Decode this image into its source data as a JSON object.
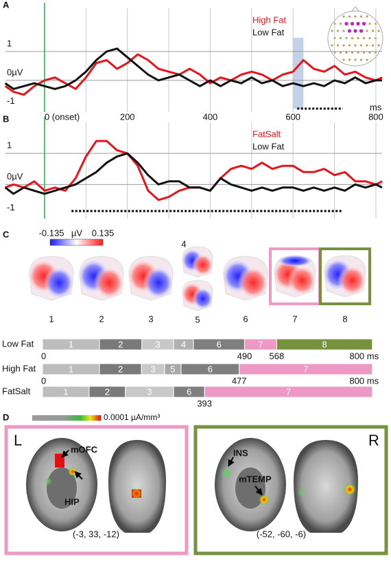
{
  "chart_data": [
    {
      "type": "line",
      "panel": "A",
      "x_label": "ms",
      "x": [
        -95,
        -75,
        -50,
        -25,
        0,
        25,
        50,
        75,
        100,
        125,
        150,
        175,
        200,
        225,
        250,
        275,
        300,
        325,
        350,
        375,
        400,
        425,
        450,
        475,
        500,
        525,
        550,
        575,
        600,
        625,
        650,
        675,
        700,
        725,
        750,
        775,
        800,
        815
      ],
      "series": [
        {
          "name": "High Fat",
          "color": "#e8141b",
          "values": [
            -0.2,
            -0.4,
            -0.5,
            -0.2,
            0,
            0.1,
            -0.1,
            -0.3,
            0.1,
            0.6,
            0.7,
            0.4,
            0.6,
            0.9,
            0.7,
            0.4,
            0.3,
            0.2,
            0.4,
            0.2,
            -0.1,
            0.1,
            0,
            0.2,
            0.3,
            0.2,
            0,
            0.2,
            0.3,
            0.7,
            0.4,
            0.3,
            0.5,
            0.2,
            0.3,
            0.1,
            0,
            0.1
          ]
        },
        {
          "name": "Low Fat",
          "color": "#111111",
          "values": [
            -0.1,
            -0.3,
            -0.2,
            -0.1,
            -0.2,
            -0.3,
            -0.2,
            0,
            0.3,
            0.7,
            1.0,
            1.1,
            0.8,
            0.5,
            0.2,
            0,
            0.1,
            0.2,
            0,
            -0.2,
            0,
            -0.2,
            0,
            -0.1,
            0.1,
            -0.1,
            0,
            -0.2,
            -0.1,
            -0.2,
            -0.1,
            -0.2,
            0,
            -0.1,
            0.1,
            -0.1,
            0,
            0
          ]
        }
      ],
      "xlim": [
        -95,
        815
      ],
      "ylim": [
        -1.1,
        2.5
      ],
      "xticks": [
        {
          "value": 0,
          "label": "0 (onset)"
        },
        200,
        400,
        600,
        800
      ],
      "x_gridlines": [
        100,
        200,
        300,
        400,
        500,
        600,
        700,
        800
      ],
      "yticks": [
        1,
        {
          "value": 0,
          "label": "0µV"
        },
        -1
      ],
      "y_gridlines": [
        1,
        0
      ],
      "onset_line": 0,
      "onset_color": "#22b14c",
      "highlight": [
        600,
        625
      ],
      "highlight_color": "#b8c9e6",
      "significant": [
        [
          610,
          720
        ]
      ]
    },
    {
      "type": "line",
      "panel": "B",
      "x": [
        -95,
        -75,
        -50,
        -25,
        0,
        25,
        50,
        75,
        100,
        125,
        150,
        175,
        200,
        225,
        250,
        275,
        300,
        325,
        350,
        375,
        400,
        425,
        450,
        475,
        500,
        525,
        550,
        575,
        600,
        625,
        650,
        675,
        700,
        725,
        750,
        775,
        800,
        815
      ],
      "series": [
        {
          "name": "FatSalt",
          "color": "#e8141b",
          "values": [
            -0.1,
            0,
            -0.1,
            0.1,
            -0.2,
            -0.1,
            -0.2,
            0.2,
            0.9,
            1.4,
            1.4,
            1.1,
            1.0,
            0.6,
            -0.2,
            -0.5,
            -0.4,
            -0.2,
            -0.1,
            -0.1,
            -0.2,
            0.2,
            0.5,
            0.6,
            0.5,
            0.7,
            0.5,
            0.6,
            0.6,
            0.4,
            0.4,
            0.5,
            0.3,
            0.4,
            0.1,
            0.1,
            0,
            0.1
          ]
        },
        {
          "name": "Low Fat",
          "color": "#111111",
          "values": [
            -0.1,
            -0.3,
            -0.1,
            -0.2,
            -0.3,
            -0.2,
            -0.1,
            0,
            0.2,
            0.4,
            0.7,
            0.9,
            1.0,
            0.7,
            0.3,
            0,
            0.1,
            0.1,
            -0.1,
            -0.1,
            -0.2,
            0.2,
            0,
            -0.1,
            -0.2,
            -0.1,
            -0.2,
            -0.1,
            -0.1,
            -0.2,
            -0.1,
            -0.2,
            -0.1,
            -0.2,
            0,
            -0.1,
            0,
            -0.1
          ]
        }
      ],
      "xlim": [
        -95,
        815
      ],
      "ylim": [
        -1.1,
        2.0
      ],
      "x_gridlines": [
        100,
        200,
        300,
        400,
        500,
        600,
        700,
        800
      ],
      "yticks": [
        1,
        {
          "value": 0,
          "label": "0µV"
        },
        -1
      ],
      "y_gridlines": [
        1,
        0
      ],
      "onset_line": 0,
      "onset_color": "#22b14c",
      "significant": [
        [
          65,
          720
        ]
      ]
    }
  ],
  "topography": {
    "panel": "C",
    "colorbar": {
      "min": -0.135,
      "unit": "µV",
      "max": 0.135
    },
    "maps": [
      "1",
      "2",
      "3",
      "4",
      "5",
      "6",
      "7",
      "8"
    ]
  },
  "segmentation": {
    "segment_colors": {
      "1": "#bdbdbd",
      "2": "#7a7a7a",
      "3": "#c8c8c8",
      "4": "#b0b0b0",
      "5": "#a8a8a8",
      "6": "#7f7f7f",
      "7": "#ee98c6",
      "8": "#76923c"
    },
    "rows": [
      {
        "name": "Low Fat",
        "segments": [
          {
            "label": "1",
            "start": 0,
            "end": 138
          },
          {
            "label": "2",
            "start": 138,
            "end": 241
          },
          {
            "label": "3",
            "start": 241,
            "end": 318
          },
          {
            "label": "4",
            "start": 318,
            "end": 366
          },
          {
            "label": "6",
            "start": 366,
            "end": 490
          },
          {
            "label": "7",
            "start": 490,
            "end": 568
          },
          {
            "label": "8",
            "start": 568,
            "end": 800
          }
        ],
        "ticks": [
          0,
          490,
          568,
          {
            "value": 800,
            "label": "800 ms"
          }
        ]
      },
      {
        "name": "High Fat",
        "segments": [
          {
            "label": "1",
            "start": 0,
            "end": 138
          },
          {
            "label": "2",
            "start": 138,
            "end": 240
          },
          {
            "label": "3",
            "start": 240,
            "end": 296
          },
          {
            "label": "5",
            "start": 296,
            "end": 336
          },
          {
            "label": "6",
            "start": 336,
            "end": 477
          },
          {
            "label": "7",
            "start": 477,
            "end": 800
          }
        ],
        "ticks": [
          0,
          477,
          {
            "value": 800,
            "label": "800 ms"
          }
        ]
      },
      {
        "name": "FatSalt",
        "segments": [
          {
            "label": "1",
            "start": 0,
            "end": 113
          },
          {
            "label": "2",
            "start": 113,
            "end": 201
          },
          {
            "label": "3",
            "start": 201,
            "end": 318
          },
          {
            "label": "6",
            "start": 318,
            "end": 393
          },
          {
            "label": "7",
            "start": 393,
            "end": 800
          }
        ],
        "ticks": [
          393
        ]
      }
    ]
  },
  "sources": {
    "panel": "D",
    "colorbar_label": "0.0001 µA/mm³",
    "left": {
      "hemisphere": "L",
      "regions": [
        "mOFC",
        "HIP"
      ],
      "coordinates": "(-3, 33, -12)"
    },
    "right": {
      "hemisphere": "R",
      "regions": [
        "INS",
        "mTEMP"
      ],
      "coordinates": "(-52, -60, -6)"
    }
  }
}
